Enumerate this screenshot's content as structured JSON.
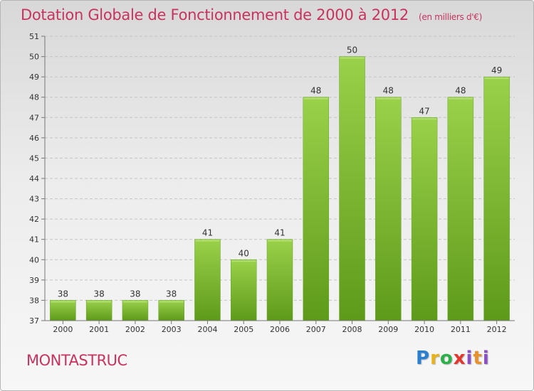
{
  "title": "Dotation Globale de Fonctionnement de 2000 à 2012",
  "subtitle": "(en milliers d'€)",
  "commune": "MONTASTRUC",
  "logo": "Proxiti",
  "chart_data": {
    "type": "bar",
    "title": "Dotation Globale de Fonctionnement de 2000 à 2012",
    "subtitle": "(en milliers d'€)",
    "categories": [
      "2000",
      "2001",
      "2002",
      "2003",
      "2004",
      "2005",
      "2006",
      "2007",
      "2008",
      "2009",
      "2010",
      "2011",
      "2012"
    ],
    "values": [
      38,
      38,
      38,
      38,
      41,
      40,
      41,
      48,
      50,
      48,
      47,
      48,
      49
    ],
    "ylim": [
      37,
      51
    ],
    "yticks": [
      37,
      38,
      39,
      40,
      41,
      42,
      43,
      44,
      45,
      46,
      47,
      48,
      49,
      50,
      51
    ],
    "grid": "horizontal-dashed",
    "bar_color": "#7dbb2e",
    "xlabel": "",
    "ylabel": ""
  }
}
